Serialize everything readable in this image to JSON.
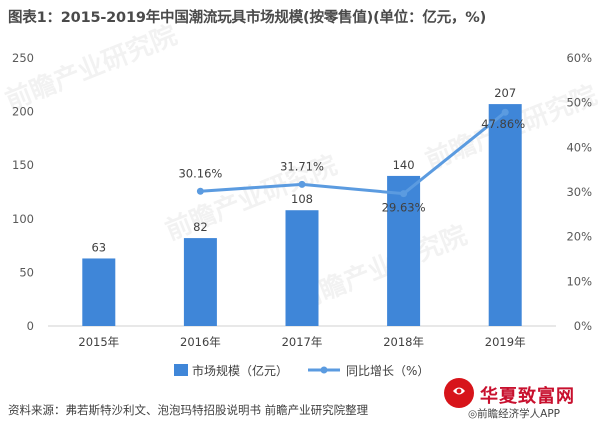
{
  "chart_data": {
    "type": "bar",
    "title": "图表1：2015-2019年中国潮流玩具市场规模(按零售值)(单位：亿元，%)",
    "categories": [
      "2015年",
      "2016年",
      "2017年",
      "2018年",
      "2019年"
    ],
    "series": [
      {
        "name": "市场规模（亿元）",
        "type": "bar",
        "axis": "left",
        "color": "#3f86d8",
        "values": [
          63,
          82,
          108,
          140,
          207
        ]
      },
      {
        "name": "同比增长（%）",
        "type": "line",
        "axis": "right",
        "color": "#5b9be0",
        "values": [
          null,
          30.16,
          31.71,
          29.63,
          47.86
        ],
        "labels": [
          "",
          "30.16%",
          "31.71%",
          "29.63%",
          "47.86%"
        ]
      }
    ],
    "y_left": {
      "ylim": [
        0,
        250
      ],
      "ticks": [
        "0",
        "50",
        "100",
        "150",
        "200",
        "250"
      ]
    },
    "y_right": {
      "ylim": [
        0,
        60
      ],
      "ticks": [
        "0%",
        "10%",
        "20%",
        "30%",
        "40%",
        "50%",
        "60%"
      ]
    },
    "grid": false,
    "legend": "bottom",
    "source": "资料来源：弗若斯特沙利文、泡泡玛特招股说明书 前瞻产业研究院整理"
  },
  "brand": {
    "name": "华夏致富网",
    "sub": "◎前瞻经济学人APP"
  },
  "watermarks": [
    "前瞻产业研究院",
    "前瞻产业研究院",
    "前瞻产业研究院",
    "前瞻产业研究院"
  ]
}
